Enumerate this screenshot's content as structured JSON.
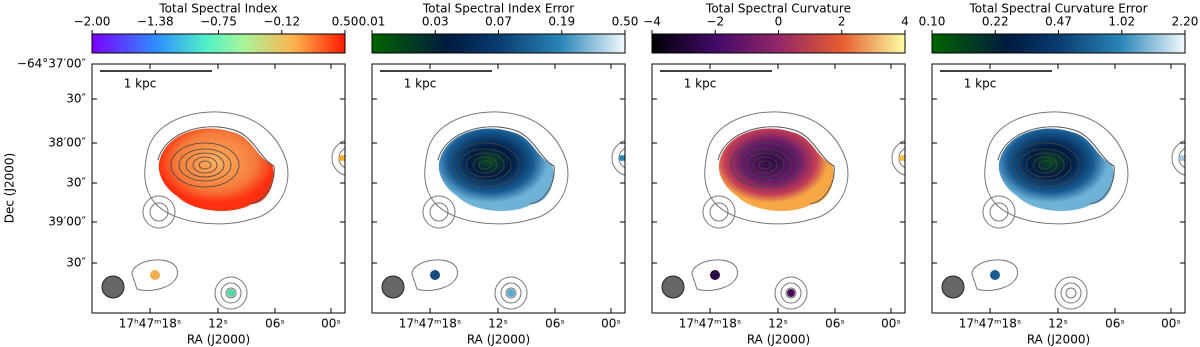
{
  "figure": {
    "y_label": "Dec (J2000)",
    "y_ticks": [
      "−64°37′00″",
      "30″",
      "38′00″",
      "30″",
      "39′00″",
      "30″"
    ],
    "panels": [
      {
        "title": "Total Spectral Index",
        "colorbar_ticks": [
          "−2.00",
          "−1.38",
          "−0.75",
          "−0.12",
          "0.50"
        ],
        "scale_label": "1 kpc",
        "x_label": "RA (J2000)",
        "x_ticks": [
          "17ʰ47ᵐ18ˢ",
          "12ˢ",
          "06ˢ",
          "00ˢ"
        ]
      },
      {
        "title": "Total Spectral Index Error",
        "colorbar_ticks": [
          "0.01",
          "0.03",
          "0.07",
          "0.19",
          "0.50"
        ],
        "scale_label": "1 kpc",
        "x_label": "RA (J2000)",
        "x_ticks": [
          "17ʰ47ᵐ18ˢ",
          "12ˢ",
          "06ˢ",
          "00ˢ"
        ]
      },
      {
        "title": "Total Spectral Curvature",
        "colorbar_ticks": [
          "−4",
          "−2",
          "0",
          "2",
          "4"
        ],
        "scale_label": "1 kpc",
        "x_label": "RA (J2000)",
        "x_ticks": [
          "17ʰ47ᵐ18ˢ",
          "12ˢ",
          "06ˢ",
          "00ˢ"
        ]
      },
      {
        "title": "Total Spectral Curvature Error",
        "colorbar_ticks": [
          "0.10",
          "0.22",
          "0.47",
          "1.02",
          "2.20"
        ],
        "scale_label": "1 kpc",
        "x_label": "RA (J2000)",
        "x_ticks": [
          "17ʰ47ᵐ18ˢ",
          "12ˢ",
          "06ˢ",
          "00ˢ"
        ]
      }
    ]
  }
}
